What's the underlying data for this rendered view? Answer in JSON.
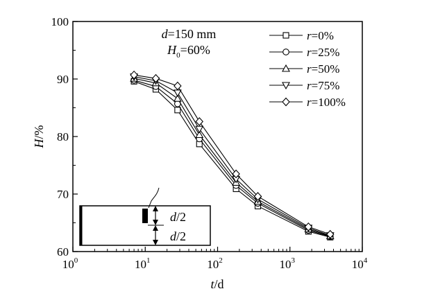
{
  "chart_data": {
    "type": "line",
    "x_scale": "log",
    "xlim": [
      1,
      10000
    ],
    "ylim": [
      60,
      100
    ],
    "x_ticks": [
      {
        "value": 1,
        "base": "10",
        "exp": "0"
      },
      {
        "value": 10,
        "base": "10",
        "exp": "1"
      },
      {
        "value": 100,
        "base": "10",
        "exp": "2"
      },
      {
        "value": 1000,
        "base": "10",
        "exp": "3"
      },
      {
        "value": 10000,
        "base": "10",
        "exp": "4"
      }
    ],
    "y_ticks": [
      "60",
      "70",
      "80",
      "90",
      "100"
    ],
    "xlabel": {
      "var": "t",
      "unit": "/d"
    },
    "ylabel": {
      "var": "H",
      "unit": "/%"
    },
    "annotation": {
      "d_var": "d",
      "d_text": "=150 mm",
      "h_var": "H",
      "h_sub": "0",
      "h_text": "=60%"
    },
    "inset": {
      "upper_var": "d",
      "upper_text": "/2",
      "lower_var": "d",
      "lower_text": "/2"
    },
    "legend_position": "top-right",
    "x": [
      7,
      14,
      28,
      56,
      180,
      360,
      1800,
      3600
    ],
    "series": [
      {
        "name_var": "r",
        "name_text": "=0%",
        "marker": "square",
        "values": [
          89.6,
          88.2,
          84.6,
          78.7,
          70.9,
          67.9,
          63.5,
          62.5
        ]
      },
      {
        "name_var": "r",
        "name_text": "=25%",
        "marker": "circle",
        "values": [
          89.8,
          88.7,
          85.7,
          79.6,
          71.5,
          68.4,
          63.7,
          62.6
        ]
      },
      {
        "name_var": "r",
        "name_text": "=50%",
        "marker": "triangle",
        "values": [
          90.1,
          89.3,
          86.6,
          80.3,
          72.0,
          68.7,
          63.9,
          62.7
        ]
      },
      {
        "name_var": "r",
        "name_text": "=75%",
        "marker": "tri-down",
        "values": [
          90.4,
          89.7,
          87.6,
          81.3,
          72.6,
          69.1,
          64.1,
          62.8
        ]
      },
      {
        "name_var": "r",
        "name_text": "=100%",
        "marker": "diamond",
        "values": [
          90.7,
          90.1,
          88.8,
          82.6,
          73.5,
          69.6,
          64.3,
          63.0
        ]
      }
    ]
  }
}
